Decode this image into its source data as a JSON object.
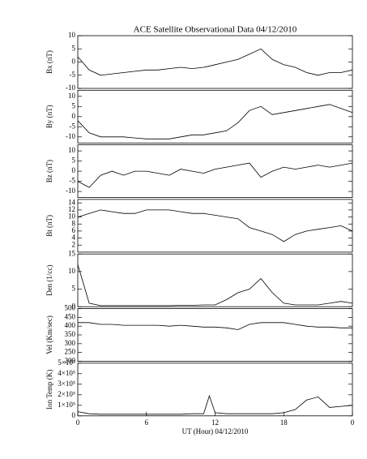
{
  "chart_data": [
    {
      "type": "line",
      "title": "ACE Satellite Observational Data  04/12/2010",
      "ylabel": "Bx (nT)",
      "color": "#000000",
      "x": [
        0,
        1,
        2,
        3,
        4,
        5,
        6,
        7,
        8,
        9,
        10,
        11,
        12,
        13,
        14,
        15,
        16,
        17,
        18,
        19,
        20,
        21,
        22,
        23,
        24
      ],
      "values": [
        2,
        -3,
        -5,
        -4.5,
        -4,
        -3.5,
        -3,
        -3,
        -2.5,
        -2,
        -2.5,
        -2,
        -1,
        0,
        1,
        3,
        5,
        1,
        -1,
        -2,
        -4,
        -5,
        -4,
        -4,
        -3
      ],
      "xlim": [
        0,
        24
      ],
      "ylim": [
        -10,
        10
      ],
      "yticks": [
        -10,
        -5,
        0,
        5,
        10
      ]
    },
    {
      "type": "line",
      "ylabel": "By (nT)",
      "color": "#000000",
      "x": [
        0,
        1,
        2,
        3,
        4,
        5,
        6,
        7,
        8,
        9,
        10,
        11,
        12,
        13,
        14,
        15,
        16,
        17,
        18,
        19,
        20,
        21,
        22,
        23,
        24
      ],
      "values": [
        -2,
        -8,
        -10,
        -10,
        -10,
        -10.5,
        -11,
        -11,
        -11,
        -10,
        -9,
        -9,
        -8,
        -7,
        -3,
        3,
        5,
        1,
        2,
        3,
        4,
        5,
        6,
        4,
        2
      ],
      "xlim": [
        0,
        24
      ],
      "ylim": [
        -13,
        13
      ],
      "yticks": [
        -10,
        -5,
        0,
        5,
        10
      ]
    },
    {
      "type": "line",
      "ylabel": "Bz (nT)",
      "color": "#000000",
      "x": [
        0,
        1,
        2,
        3,
        4,
        5,
        6,
        7,
        8,
        9,
        10,
        11,
        12,
        13,
        14,
        15,
        16,
        17,
        18,
        19,
        20,
        21,
        22,
        23,
        24
      ],
      "values": [
        -5,
        -8,
        -2,
        0,
        -2,
        0,
        0,
        -1,
        -2,
        1,
        0,
        -1,
        1,
        2,
        3,
        4,
        -3,
        0,
        2,
        1,
        2,
        3,
        2,
        3,
        4
      ],
      "xlim": [
        0,
        24
      ],
      "ylim": [
        -13,
        13
      ],
      "yticks": [
        -10,
        -5,
        0,
        5,
        10
      ]
    },
    {
      "type": "line",
      "ylabel": "Bt (nT)",
      "color": "#000000",
      "x": [
        0,
        1,
        2,
        3,
        4,
        5,
        6,
        7,
        8,
        9,
        10,
        11,
        12,
        13,
        14,
        15,
        16,
        17,
        18,
        19,
        20,
        21,
        22,
        23,
        24
      ],
      "values": [
        10,
        11,
        12,
        11.5,
        11,
        11,
        12,
        12,
        12,
        11.5,
        11,
        11,
        10.5,
        10,
        9.5,
        7,
        6,
        5,
        3,
        5,
        6,
        6.5,
        7,
        7.5,
        6
      ],
      "xlim": [
        0,
        24
      ],
      "ylim": [
        0,
        15
      ],
      "yticks": [
        2,
        4,
        6,
        8,
        10,
        12,
        14
      ]
    },
    {
      "type": "line",
      "ylabel": "Den (1/cc)",
      "color": "#000000",
      "x": [
        0,
        1,
        2,
        3,
        4,
        5,
        6,
        7,
        8,
        9,
        10,
        11,
        12,
        13,
        14,
        15,
        16,
        17,
        18,
        19,
        20,
        21,
        22,
        23,
        24
      ],
      "values": [
        12,
        1,
        0.3,
        0.3,
        0.3,
        0.3,
        0.3,
        0.3,
        0.3,
        0.4,
        0.4,
        0.5,
        0.5,
        2,
        4,
        5,
        8,
        4,
        1,
        0.5,
        0.5,
        0.5,
        1,
        1.5,
        1
      ],
      "xlim": [
        0,
        24
      ],
      "ylim": [
        0,
        15
      ],
      "yticks": [
        0,
        5,
        10,
        15
      ]
    },
    {
      "type": "line",
      "ylabel": "Vel (Km/sec)",
      "color": "#000000",
      "x": [
        0,
        1,
        2,
        3,
        4,
        5,
        6,
        7,
        8,
        9,
        10,
        11,
        12,
        13,
        14,
        15,
        16,
        17,
        18,
        19,
        20,
        21,
        22,
        23,
        24
      ],
      "values": [
        420,
        420,
        410,
        410,
        405,
        405,
        405,
        405,
        400,
        405,
        400,
        395,
        395,
        390,
        380,
        410,
        420,
        420,
        420,
        410,
        400,
        395,
        395,
        390,
        390
      ],
      "xlim": [
        0,
        24
      ],
      "ylim": [
        200,
        500
      ],
      "yticks": [
        200,
        250,
        300,
        350,
        400,
        450,
        500
      ]
    },
    {
      "type": "line",
      "ylabel": "Ion Temp (K)",
      "xlabel": "UT (Hour)  04/12/2010",
      "color": "#000000",
      "x": [
        0,
        1,
        2,
        3,
        4,
        5,
        6,
        7,
        8,
        9,
        10,
        11,
        11.5,
        12,
        13,
        14,
        15,
        16,
        17,
        18,
        19,
        20,
        21,
        22,
        23,
        24
      ],
      "values": [
        40000,
        20000,
        15000,
        15000,
        15000,
        15000,
        15000,
        15000,
        15000,
        15000,
        20000,
        20000,
        190000,
        30000,
        20000,
        20000,
        20000,
        20000,
        20000,
        30000,
        60000,
        150000,
        180000,
        80000,
        90000,
        100000
      ],
      "xlim": [
        0,
        24
      ],
      "ylim": [
        0,
        500000
      ],
      "yticks": [
        0,
        {
          "value": 100000,
          "label": "1×10⁵"
        },
        {
          "value": 200000,
          "label": "2×10⁵"
        },
        {
          "value": 300000,
          "label": "3×10⁵"
        },
        {
          "value": 400000,
          "label": "4×10⁵"
        },
        {
          "value": 500000,
          "label": "5×10⁵"
        }
      ],
      "xticks": [
        0,
        6,
        12,
        18,
        {
          "value": 24,
          "label": "0"
        }
      ]
    }
  ]
}
